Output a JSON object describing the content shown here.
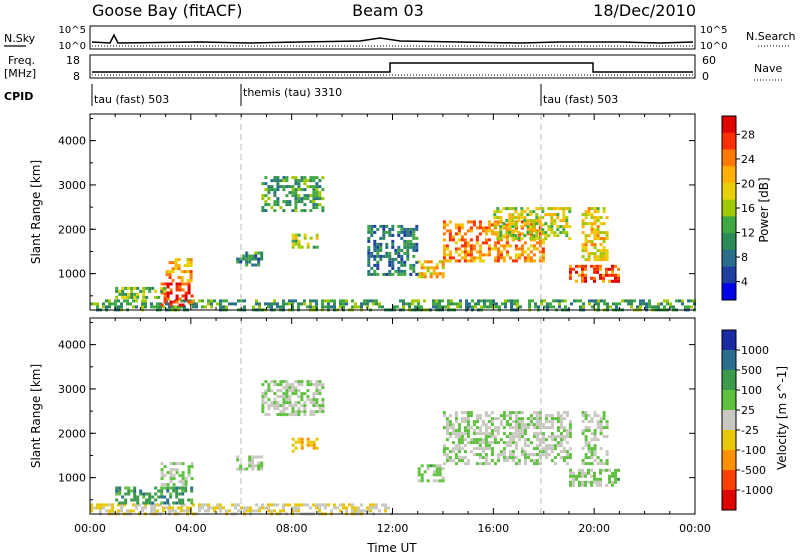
{
  "header": {
    "station": "Goose Bay (fitACF)",
    "beam": "Beam 03",
    "date": "18/Dec/2010"
  },
  "strips": {
    "nsky": {
      "label": "N.Sky",
      "ticks": [
        "10^5",
        "10^0"
      ]
    },
    "nsearch": {
      "label": "N.Search",
      "ticks": [
        "10^5",
        "10^0"
      ]
    },
    "freq": {
      "label1": "Freq.",
      "label2": "[MHz]",
      "ticks": [
        "18",
        "8"
      ]
    },
    "nave": {
      "label": "Nave",
      "ticks": [
        "60",
        "0"
      ]
    },
    "cpid": {
      "label": "CPID",
      "segments": [
        {
          "text": "tau (fast) 503",
          "start": 0
        },
        {
          "text": "themis (tau) 3310",
          "start": 6
        },
        {
          "text": "tau (fast) 503",
          "start": 18
        }
      ]
    }
  },
  "colorbars": {
    "power": {
      "label": "Power [dB]",
      "ticks": [
        "28",
        "24",
        "20",
        "16",
        "12",
        "8",
        "4"
      ],
      "colors": [
        "#e00000",
        "#ff3000",
        "#ff7a00",
        "#ffb000",
        "#e8d000",
        "#a0c800",
        "#40a840",
        "#2e8b57",
        "#2a6e8c",
        "#1f3fa0",
        "#0000e8"
      ]
    },
    "velocity": {
      "label": "Velocity [m s^-1]",
      "ticks": [
        "1000",
        "500",
        "100",
        "25",
        "-25",
        "-100",
        "-500",
        "-1000"
      ],
      "colors": [
        "#1a2aa0",
        "#2a6e8c",
        "#3c9a4c",
        "#60c040",
        "#c8c8c0",
        "#e8c800",
        "#ff9000",
        "#ff4000",
        "#e00000"
      ]
    }
  },
  "chart_data": [
    {
      "type": "heatmap",
      "name": "Power",
      "ylabel": "Slant Range [km]",
      "xlim": [
        0,
        24
      ],
      "ylim": [
        180,
        4600
      ],
      "yticks": [
        "1000",
        "2000",
        "3000",
        "4000"
      ],
      "regions": [
        {
          "x0": 0.0,
          "x1": 24.0,
          "y0": 200,
          "y1": 420,
          "level": 0.35
        },
        {
          "x0": 2.8,
          "x1": 4.0,
          "y0": 300,
          "y1": 800,
          "level": 0.95
        },
        {
          "x0": 3.0,
          "x1": 4.0,
          "y0": 850,
          "y1": 1350,
          "level": 0.7
        },
        {
          "x0": 1.0,
          "x1": 3.0,
          "y0": 450,
          "y1": 700,
          "level": 0.45
        },
        {
          "x0": 5.8,
          "x1": 6.8,
          "y0": 1200,
          "y1": 1500,
          "level": 0.3
        },
        {
          "x0": 6.8,
          "x1": 9.2,
          "y0": 2400,
          "y1": 3200,
          "level": 0.35
        },
        {
          "x0": 8.0,
          "x1": 9.0,
          "y0": 1600,
          "y1": 1900,
          "level": 0.5
        },
        {
          "x0": 13.0,
          "x1": 14.0,
          "y0": 900,
          "y1": 1300,
          "level": 0.65
        },
        {
          "x0": 14.0,
          "x1": 18.0,
          "y0": 1300,
          "y1": 2200,
          "level": 0.75
        },
        {
          "x0": 16.0,
          "x1": 19.0,
          "y0": 1800,
          "y1": 2500,
          "level": 0.55
        },
        {
          "x0": 19.0,
          "x1": 21.0,
          "y0": 800,
          "y1": 1200,
          "level": 0.85
        },
        {
          "x0": 19.5,
          "x1": 20.5,
          "y0": 1300,
          "y1": 2500,
          "level": 0.6
        },
        {
          "x0": 11.0,
          "x1": 13.0,
          "y0": 1000,
          "y1": 2100,
          "level": 0.25
        }
      ]
    },
    {
      "type": "heatmap",
      "name": "Velocity",
      "ylabel": "Slant Range [km]",
      "xlabel": "Time UT",
      "xlim": [
        0,
        24
      ],
      "ylim": [
        180,
        4600
      ],
      "xticks": [
        "00:00",
        "04:00",
        "08:00",
        "12:00",
        "16:00",
        "20:00",
        "00:00"
      ],
      "yticks": [
        "1000",
        "2000",
        "3000",
        "4000"
      ],
      "regions": [
        {
          "x0": 0.0,
          "x1": 12.0,
          "y0": 200,
          "y1": 420,
          "level": 0.45
        },
        {
          "x0": 1.0,
          "x1": 4.0,
          "y0": 450,
          "y1": 800,
          "level": 0.75
        },
        {
          "x0": 2.8,
          "x1": 4.0,
          "y0": 850,
          "y1": 1350,
          "level": 0.55
        },
        {
          "x0": 5.8,
          "x1": 6.8,
          "y0": 1200,
          "y1": 1500,
          "level": 0.55
        },
        {
          "x0": 6.8,
          "x1": 9.2,
          "y0": 2400,
          "y1": 3200,
          "level": 0.55
        },
        {
          "x0": 8.0,
          "x1": 9.0,
          "y0": 1600,
          "y1": 1900,
          "level": 0.35
        },
        {
          "x0": 13.0,
          "x1": 14.0,
          "y0": 900,
          "y1": 1300,
          "level": 0.6
        },
        {
          "x0": 14.0,
          "x1": 19.0,
          "y0": 1300,
          "y1": 2500,
          "level": 0.55
        },
        {
          "x0": 19.0,
          "x1": 21.0,
          "y0": 800,
          "y1": 1200,
          "level": 0.6
        },
        {
          "x0": 19.5,
          "x1": 20.5,
          "y0": 1300,
          "y1": 2500,
          "level": 0.55
        }
      ]
    }
  ]
}
